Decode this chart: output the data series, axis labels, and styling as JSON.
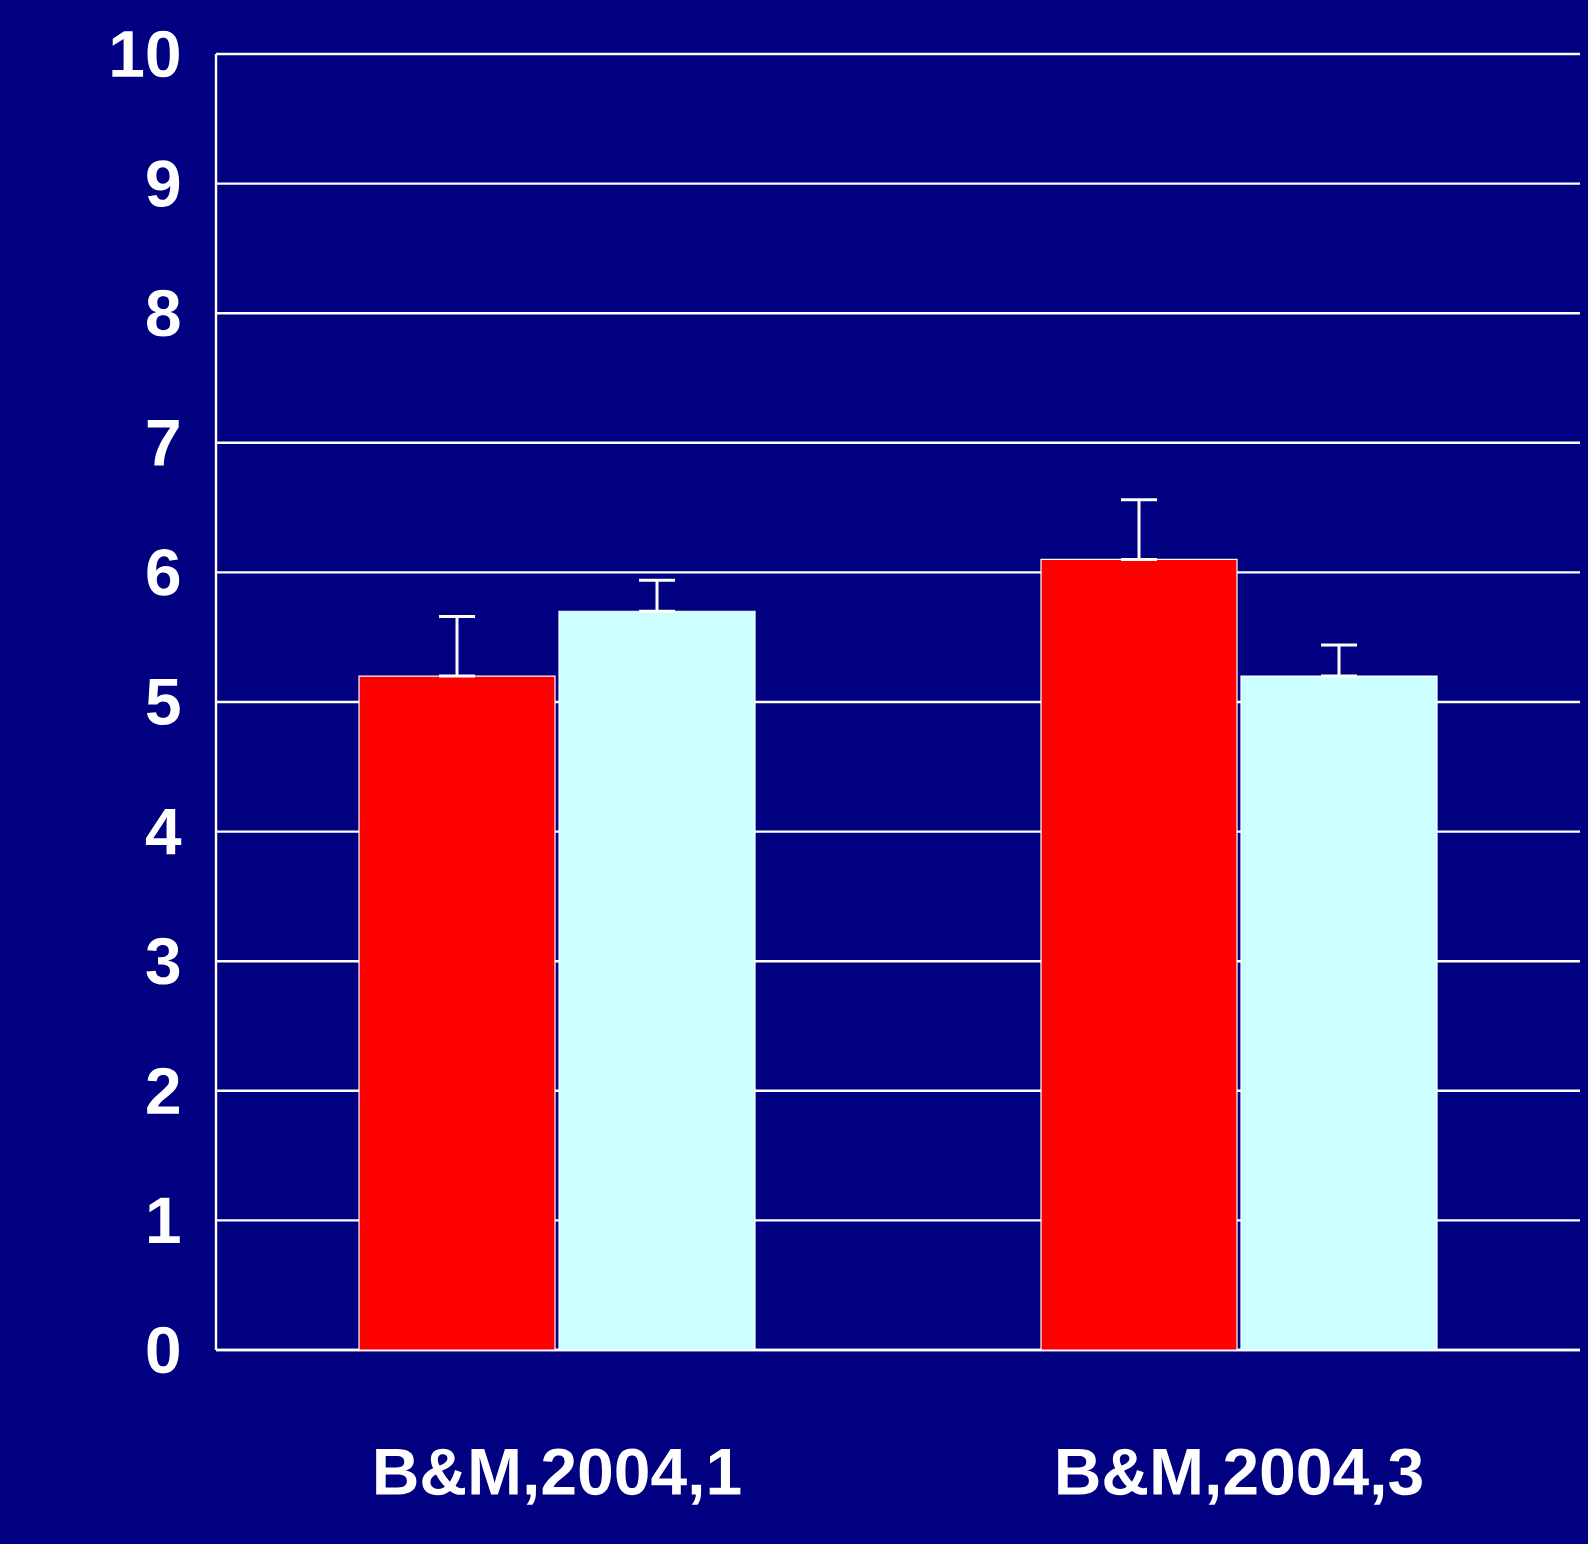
{
  "chart_data": {
    "type": "bar",
    "categories": [
      "B&M,2004,1",
      "B&M,2004,3"
    ],
    "series": [
      {
        "color": "#ff0000",
        "values": [
          5.2,
          6.1
        ],
        "errors": [
          [
            5.2,
            5.66
          ],
          [
            6.1,
            6.56
          ]
        ]
      },
      {
        "color": "#ccffff",
        "values": [
          5.7,
          5.2
        ],
        "errors": [
          [
            5.7,
            5.94
          ],
          [
            5.2,
            5.44
          ]
        ]
      }
    ],
    "ylim": [
      0,
      10
    ],
    "yticks": [
      0,
      1,
      2,
      3,
      4,
      5,
      6,
      7,
      8,
      9,
      10
    ],
    "grid": "y"
  }
}
